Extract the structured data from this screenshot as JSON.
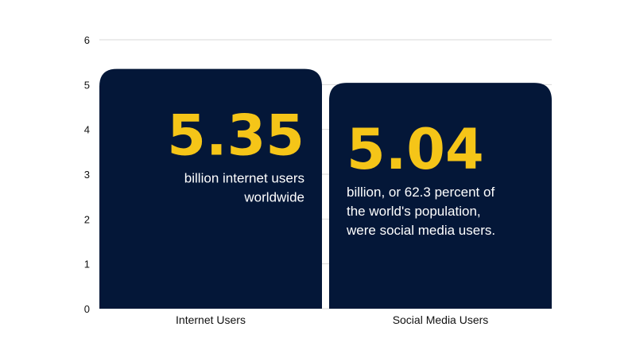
{
  "chart_data": {
    "type": "bar",
    "categories": [
      "Internet Users",
      "Social Media Users"
    ],
    "values": [
      5.35,
      5.04
    ],
    "ylim": [
      0,
      6
    ],
    "yticks": [
      "0",
      "1",
      "2",
      "3",
      "4",
      "5",
      "6"
    ],
    "grid": true,
    "annotations": [
      {
        "value_text": "5.35",
        "lines": [
          "billion internet users",
          "worldwide"
        ],
        "align": "right"
      },
      {
        "value_text": "5.04",
        "lines": [
          "billion, or 62.3 percent of",
          "the world's population,",
          "were social media users."
        ],
        "align": "left"
      }
    ]
  },
  "colors": {
    "bar": "#041738",
    "value_text": "#f5c518",
    "annotation_text": "#ffffff",
    "grid": "#d9d9d9",
    "text": "#111111"
  }
}
